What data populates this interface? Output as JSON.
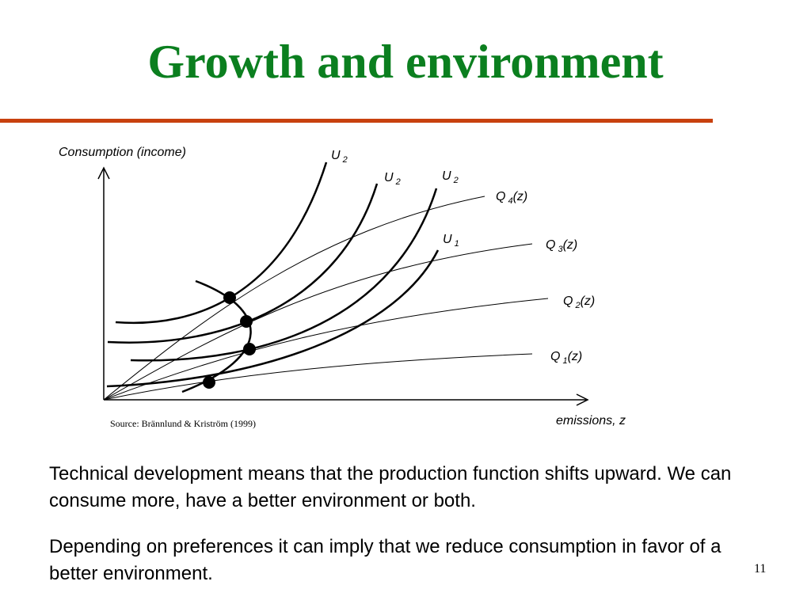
{
  "title": "Growth and environment",
  "diagram": {
    "y_axis_label": "Consumption (income)",
    "x_axis_label": "emissions, z",
    "source": "Source: Brännlund & Kriström (1999)",
    "production_curves": [
      {
        "letter": "Q",
        "sub": "4",
        "arg": "(z)"
      },
      {
        "letter": "Q",
        "sub": "3",
        "arg": "(z)"
      },
      {
        "letter": "Q",
        "sub": "2",
        "arg": "(z)"
      },
      {
        "letter": "Q",
        "sub": "1",
        "arg": "(z)"
      }
    ],
    "indifference_curves": [
      {
        "letter": "U",
        "sub": "2"
      },
      {
        "letter": "U",
        "sub": "2"
      },
      {
        "letter": "U",
        "sub": "2"
      },
      {
        "letter": "U",
        "sub": "1"
      }
    ]
  },
  "paragraphs": [
    "Technical development means that the production function shifts upward. We can consume more, have a better environment or both.",
    "Depending on preferences it can imply that we reduce consumption in favor of a better environment."
  ],
  "page_number": "11"
}
